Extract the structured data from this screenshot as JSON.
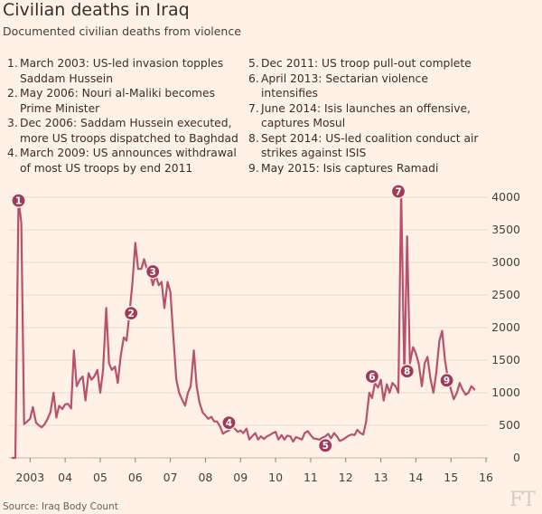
{
  "title": "Civilian deaths in Iraq",
  "subtitle": "Documented civilian deaths from violence",
  "source": "Source: Iraq Body Count",
  "logo": "FT",
  "notes_left": [
    {
      "num": "1.",
      "text": "March 2003: US-led invasion topples Saddam Hussein"
    },
    {
      "num": "2.",
      "text": "May 2006: Nouri al-Maliki becomes Prime Minister"
    },
    {
      "num": "3.",
      "text": "Dec 2006: Saddam Hussein executed, more US troops dispatched to Baghdad"
    },
    {
      "num": "4.",
      "text": "March 2009: US announces withdrawal of most US troops by end 2011"
    }
  ],
  "notes_right": [
    {
      "num": "5.",
      "text": "Dec 2011: US troop pull-out complete"
    },
    {
      "num": "6.",
      "text": "April 2013: Sectarian violence intensifies"
    },
    {
      "num": "7.",
      "text": "June 2014: Isis launches an offensive, captures Mosul"
    },
    {
      "num": "8.",
      "text": "Sept 2014: US-led coalition conduct air strikes against ISIS"
    },
    {
      "num": "9.",
      "text": "May 2015: Isis captures Ramadi"
    }
  ],
  "colors": {
    "background": "#fff1e5",
    "line": "#b8506e",
    "marker": "#9e3b5a",
    "grid": "#e6d9ce",
    "text": "#33302e"
  },
  "chart_data": {
    "type": "line",
    "title": "Civilian deaths in Iraq",
    "subtitle": "Documented civilian deaths from violence",
    "xlabel": "",
    "ylabel": "",
    "ylim": [
      0,
      4000
    ],
    "y_ticks": [
      "0",
      "500",
      "1000",
      "1500",
      "2000",
      "2500",
      "3000",
      "3500",
      "4000"
    ],
    "x_ticks": [
      {
        "label": "2003",
        "year": 2003.5
      },
      {
        "label": "04",
        "year": 2004.5
      },
      {
        "label": "05",
        "year": 2005.5
      },
      {
        "label": "06",
        "year": 2006.5
      },
      {
        "label": "07",
        "year": 2007.5
      },
      {
        "label": "08",
        "year": 2008.5
      },
      {
        "label": "09",
        "year": 2009.5
      },
      {
        "label": "10",
        "year": 2010.5
      },
      {
        "label": "11",
        "year": 2011.5
      },
      {
        "label": "12",
        "year": 2012.5
      },
      {
        "label": "13",
        "year": 2013.5
      },
      {
        "label": "14",
        "year": 2014.5
      },
      {
        "label": "15",
        "year": 2015.5
      },
      {
        "label": "16",
        "year": 2016.5
      }
    ],
    "series": [
      {
        "name": "Documented civilian deaths",
        "x": [
          2003.0,
          2003.04,
          2003.08,
          2003.17,
          2003.25,
          2003.33,
          2003.42,
          2003.5,
          2003.58,
          2003.67,
          2003.75,
          2003.83,
          2003.92,
          2004.0,
          2004.08,
          2004.17,
          2004.25,
          2004.33,
          2004.42,
          2004.5,
          2004.58,
          2004.67,
          2004.75,
          2004.83,
          2004.92,
          2005.0,
          2005.08,
          2005.17,
          2005.25,
          2005.33,
          2005.42,
          2005.5,
          2005.58,
          2005.67,
          2005.75,
          2005.83,
          2005.92,
          2006.0,
          2006.08,
          2006.17,
          2006.25,
          2006.33,
          2006.42,
          2006.5,
          2006.58,
          2006.67,
          2006.75,
          2006.83,
          2006.92,
          2007.0,
          2007.08,
          2007.17,
          2007.25,
          2007.33,
          2007.42,
          2007.5,
          2007.58,
          2007.67,
          2007.75,
          2007.83,
          2007.92,
          2008.0,
          2008.08,
          2008.17,
          2008.25,
          2008.33,
          2008.42,
          2008.5,
          2008.58,
          2008.67,
          2008.75,
          2008.83,
          2008.92,
          2009.0,
          2009.08,
          2009.17,
          2009.25,
          2009.33,
          2009.42,
          2009.5,
          2009.58,
          2009.67,
          2009.75,
          2009.83,
          2009.92,
          2010.0,
          2010.08,
          2010.17,
          2010.25,
          2010.33,
          2010.42,
          2010.5,
          2010.58,
          2010.67,
          2010.75,
          2010.83,
          2010.92,
          2011.0,
          2011.08,
          2011.17,
          2011.25,
          2011.33,
          2011.42,
          2011.5,
          2011.58,
          2011.67,
          2011.75,
          2011.83,
          2011.92,
          2012.0,
          2012.08,
          2012.17,
          2012.25,
          2012.33,
          2012.42,
          2012.5,
          2012.58,
          2012.67,
          2012.75,
          2012.83,
          2012.92,
          2013.0,
          2013.08,
          2013.17,
          2013.25,
          2013.33,
          2013.42,
          2013.5,
          2013.58,
          2013.67,
          2013.75,
          2013.83,
          2013.92,
          2014.0,
          2014.08,
          2014.17,
          2014.25,
          2014.33,
          2014.42,
          2014.5,
          2014.58,
          2014.67,
          2014.75,
          2014.83,
          2014.92,
          2015.0,
          2015.08,
          2015.17,
          2015.25,
          2015.33,
          2015.42,
          2015.5,
          2015.58,
          2015.67,
          2015.75,
          2015.83,
          2015.92,
          2016.0,
          2016.08,
          2016.17
        ],
        "y": [
          0,
          0,
          0,
          3980,
          3600,
          520,
          560,
          600,
          780,
          540,
          500,
          470,
          520,
          600,
          700,
          1000,
          620,
          800,
          750,
          820,
          830,
          760,
          1650,
          1100,
          1200,
          1250,
          880,
          1300,
          1200,
          1250,
          1350,
          1000,
          1350,
          2300,
          1450,
          1350,
          1400,
          1150,
          1550,
          1850,
          1800,
          2200,
          2700,
          3300,
          2900,
          2900,
          3050,
          2900,
          2850,
          2650,
          2800,
          2650,
          2700,
          2300,
          2700,
          2550,
          1900,
          1200,
          1000,
          900,
          800,
          1000,
          1100,
          1650,
          1100,
          850,
          700,
          650,
          600,
          630,
          560,
          560,
          480,
          370,
          400,
          420,
          480,
          450,
          400,
          420,
          380,
          450,
          280,
          330,
          380,
          280,
          330,
          290,
          330,
          350,
          380,
          400,
          280,
          350,
          280,
          340,
          330,
          250,
          320,
          300,
          280,
          380,
          410,
          350,
          300,
          290,
          280,
          310,
          330,
          370,
          300,
          380,
          330,
          260,
          280,
          310,
          340,
          360,
          350,
          430,
          380,
          360,
          560,
          1000,
          920,
          1150,
          1080,
          1200,
          880,
          1130,
          1000,
          1150,
          1100,
          1000,
          4100,
          1250,
          3400,
          1450,
          1700,
          1600,
          1450,
          1100,
          1450,
          1550,
          1200,
          1000,
          1300,
          1800,
          1950,
          1500,
          1200,
          1050,
          900,
          1000,
          1150,
          1050,
          970,
          1000,
          1100,
          1050
        ]
      }
    ],
    "annotations": [
      {
        "label": "1",
        "year": 2003.17,
        "value": 3950
      },
      {
        "label": "2",
        "year": 2006.38,
        "value": 2220
      },
      {
        "label": "3",
        "year": 2007.0,
        "value": 2860
      },
      {
        "label": "4",
        "year": 2009.17,
        "value": 540
      },
      {
        "label": "5",
        "year": 2011.92,
        "value": 190
      },
      {
        "label": "6",
        "year": 2013.25,
        "value": 1250
      },
      {
        "label": "7",
        "year": 2014.0,
        "value": 4090
      },
      {
        "label": "8",
        "year": 2014.25,
        "value": 1330
      },
      {
        "label": "9",
        "year": 2015.38,
        "value": 1190
      }
    ]
  }
}
